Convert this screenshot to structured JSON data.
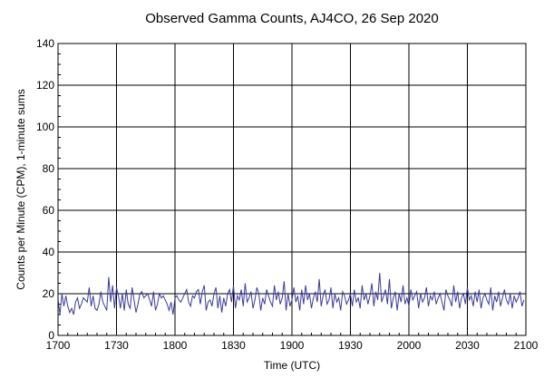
{
  "chart_data": {
    "type": "line",
    "title": "Observed Gamma Counts, AJ4CO, 26 Sep 2020",
    "xlabel": "Time (UTC)",
    "ylabel": "Counts per Minute (CPM), 1-minute sums",
    "x_tick_labels": [
      "1700",
      "1730",
      "1800",
      "1830",
      "1900",
      "1930",
      "2000",
      "2030",
      "2100"
    ],
    "x_range_minutes": [
      0,
      240
    ],
    "x_interval_minutes": 1,
    "ylim": [
      0,
      140
    ],
    "y_ticks": [
      0,
      20,
      40,
      60,
      80,
      100,
      120,
      140
    ],
    "grid": true,
    "series": [
      {
        "color": "#3a3a9a",
        "values": [
          17,
          10,
          20,
          14,
          19,
          14,
          11,
          13,
          10,
          16,
          18,
          13,
          15,
          18,
          17,
          16,
          23,
          14,
          19,
          13,
          12,
          15,
          21,
          16,
          14,
          12,
          28,
          16,
          24,
          13,
          23,
          19,
          13,
          20,
          12,
          22,
          15,
          13,
          23,
          17,
          11,
          15,
          20,
          21,
          18,
          19,
          20,
          17,
          14,
          21,
          12,
          15,
          20,
          18,
          19,
          17,
          15,
          12,
          16,
          10,
          18,
          19,
          17,
          16,
          18,
          20,
          22,
          16,
          14,
          19,
          18,
          21,
          22,
          15,
          21,
          24,
          12,
          16,
          17,
          14,
          20,
          23,
          13,
          19,
          11,
          18,
          14,
          20,
          22,
          16,
          24,
          13,
          19,
          17,
          22,
          14,
          25,
          16,
          18,
          21,
          13,
          17,
          23,
          20,
          12,
          18,
          15,
          22,
          19,
          16,
          14,
          24,
          17,
          21,
          15,
          18,
          26,
          12,
          20,
          14,
          17,
          23,
          16,
          19,
          12,
          22,
          15,
          24,
          17,
          20,
          13,
          18,
          21,
          16,
          27,
          14,
          19,
          22,
          15,
          17,
          23,
          13,
          20,
          16,
          18,
          12,
          21,
          19,
          15,
          17,
          20,
          14,
          22,
          16,
          18,
          13,
          24,
          17,
          20,
          15,
          19,
          25,
          14,
          21,
          17,
          30,
          16,
          19,
          22,
          15,
          27,
          13,
          18,
          21,
          12,
          20,
          16,
          24,
          15,
          18,
          14,
          22,
          17,
          19,
          21,
          13,
          20,
          16,
          18,
          23,
          14,
          19,
          17,
          21,
          15,
          18,
          20,
          16,
          12,
          22,
          19,
          17,
          14,
          24,
          16,
          21,
          13,
          18,
          20,
          15,
          23,
          17,
          19,
          14,
          21,
          16,
          22,
          13,
          18,
          20,
          17,
          15,
          23,
          12,
          19,
          16,
          21,
          14,
          18,
          22,
          17,
          15,
          20,
          13,
          19,
          16,
          18,
          21,
          14,
          17
        ]
      }
    ]
  }
}
